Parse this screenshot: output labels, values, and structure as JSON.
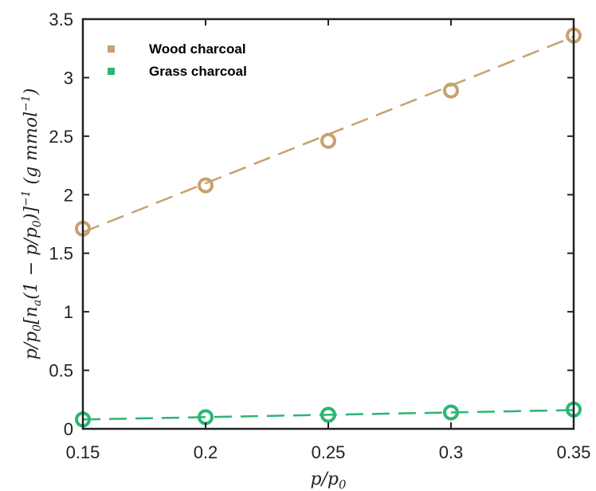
{
  "chart_data": {
    "type": "scatter",
    "title": "",
    "xlabel": "p/p0",
    "ylabel": "p/p0[na(1 − p/p0)]−1 (g mmol−1)",
    "xlim": [
      0.15,
      0.35
    ],
    "ylim": [
      0,
      3.5
    ],
    "x_ticks": [
      0.15,
      0.2,
      0.25,
      0.3,
      0.35
    ],
    "x_tick_labels": [
      "0.15",
      "0.2",
      "0.25",
      "0.3",
      "0.35"
    ],
    "y_ticks": [
      0,
      0.5,
      1,
      1.5,
      2,
      2.5,
      3,
      3.5
    ],
    "y_tick_labels": [
      "0",
      "0.5",
      "1",
      "1.5",
      "2",
      "2.5",
      "3",
      "3.5"
    ],
    "grid": false,
    "legend_position": "top-left",
    "series": [
      {
        "name": "Wood charcoal",
        "color": "#c8a170",
        "x": [
          0.15,
          0.2,
          0.25,
          0.3,
          0.35
        ],
        "y": [
          1.71,
          2.08,
          2.46,
          2.89,
          3.36
        ],
        "fit": {
          "style": "dashed",
          "x": [
            0.15,
            0.35
          ],
          "y": [
            1.68,
            3.35
          ]
        }
      },
      {
        "name": "Grass charcoal",
        "color": "#2cb573",
        "x": [
          0.15,
          0.2,
          0.25,
          0.3,
          0.35
        ],
        "y": [
          0.08,
          0.1,
          0.12,
          0.14,
          0.165
        ],
        "fit": {
          "style": "dashed",
          "x": [
            0.15,
            0.35
          ],
          "y": [
            0.08,
            0.16
          ]
        }
      }
    ]
  }
}
